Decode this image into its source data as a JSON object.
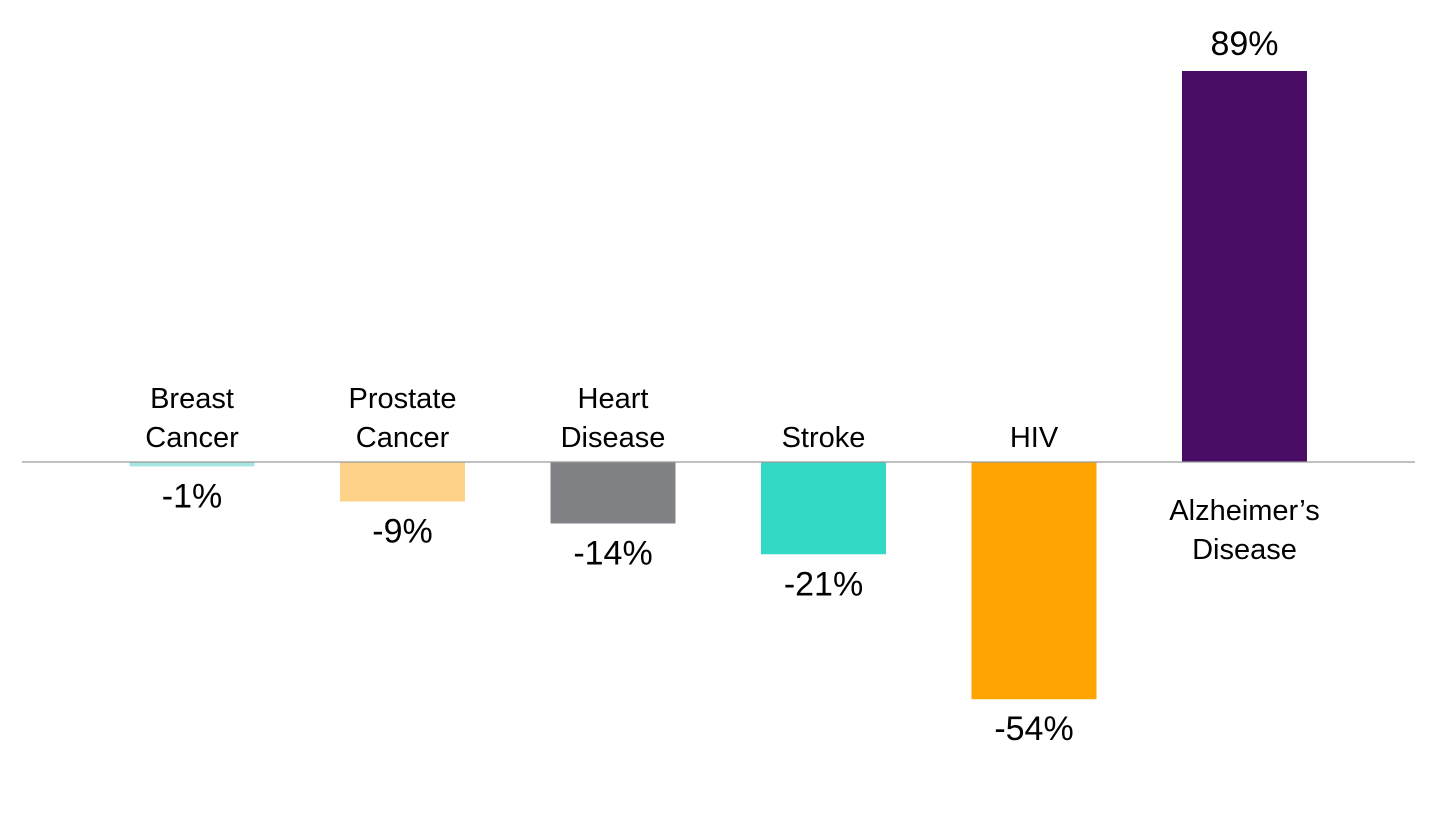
{
  "chart_data": {
    "type": "bar",
    "title": "",
    "xlabel": "",
    "ylabel": "",
    "categories": [
      [
        "Breast",
        "Cancer"
      ],
      [
        "Prostate",
        "Cancer"
      ],
      [
        "Heart",
        "Disease"
      ],
      [
        "Stroke"
      ],
      [
        "HIV"
      ],
      [
        "Alzheimer’s",
        "Disease"
      ]
    ],
    "values": [
      -1,
      -9,
      -14,
      -21,
      -54,
      89
    ],
    "value_labels": [
      "-1%",
      "-9%",
      "-14%",
      "-21%",
      "-54%",
      "89%"
    ],
    "colors": [
      "#A6E6E0",
      "#FDD38A",
      "#818285",
      "#33D9C4",
      "#FFA400",
      "#4A0D66"
    ],
    "ylim": [
      -54,
      89
    ],
    "grid": false,
    "legend": "none",
    "axis_line_color": "#9A9A9A"
  }
}
